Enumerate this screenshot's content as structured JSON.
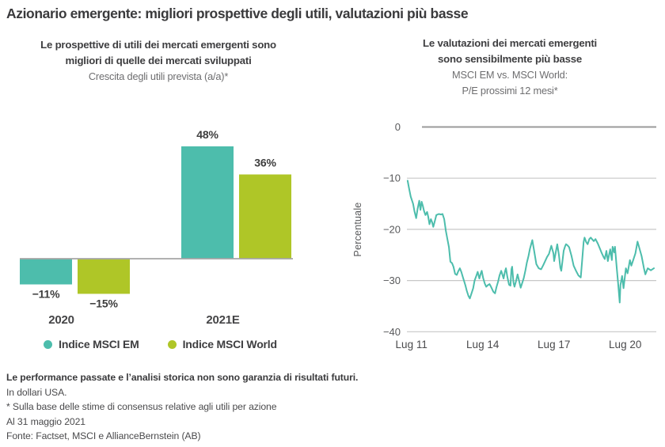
{
  "page": {
    "title": "Azionario emergente: migliori prospettive degli utili, valutazioni più basse"
  },
  "colors": {
    "em": "#4DBDAC",
    "world": "#AFC627",
    "title_dark": "#3A3A3C",
    "subtitle_gray": "#6E6E70",
    "axis_gray": "#58595B",
    "grid_light": "#C7C7C7",
    "grid_zero": "#9A9A9A",
    "baseline_gray": "#A6A6A6"
  },
  "chart_data": [
    {
      "type": "bar",
      "title_line1": "Le prospettive di utili dei mercati emergenti sono",
      "title_line2": "migliori di quelle dei mercati sviluppati",
      "subtitle": "Crescita degli utili prevista (a/a)*",
      "categories": [
        "2020",
        "2021E"
      ],
      "series": [
        {
          "name": "Indice MSCI EM",
          "color_key": "em",
          "values": [
            -11,
            48
          ],
          "labels": [
            "−11%",
            "48%"
          ]
        },
        {
          "name": "Indice MSCI World",
          "color_key": "world",
          "values": [
            -15,
            36
          ],
          "labels": [
            "−15%",
            "36%"
          ]
        }
      ],
      "ylim": [
        -20,
        55
      ],
      "grid": false,
      "legend_position": "bottom"
    },
    {
      "type": "line",
      "title_line1": "Le valutazioni dei mercati emergenti",
      "title_line2": "sono sensibilmente più basse",
      "subtitle_line1": "MSCI EM vs. MSCI World:",
      "subtitle_line2": "P/E prossimi 12 mesi*",
      "ylabel": "Percentuale",
      "ylim": [
        -40,
        0
      ],
      "xlim": [
        2011.35,
        2021.85
      ],
      "grid": true,
      "yticks": [
        {
          "value": 0,
          "label": "0"
        },
        {
          "value": -10,
          "label": "−10"
        },
        {
          "value": -20,
          "label": "−20"
        },
        {
          "value": -30,
          "label": "−30"
        },
        {
          "value": -40,
          "label": "−40"
        }
      ],
      "xticks": [
        {
          "value": 2011.54,
          "label": "Lug 11"
        },
        {
          "value": 2014.54,
          "label": "Lug 14"
        },
        {
          "value": 2017.54,
          "label": "Lug 17"
        },
        {
          "value": 2020.54,
          "label": "Lug 20"
        }
      ],
      "series": [
        {
          "name": "MSCI EM vs. MSCI World P/E prossimi 12 mesi",
          "color_key": "em",
          "points": [
            [
              2011.38,
              -10.5
            ],
            [
              2011.44,
              -12.0
            ],
            [
              2011.51,
              -13.6
            ],
            [
              2011.61,
              -15.0
            ],
            [
              2011.67,
              -16.5
            ],
            [
              2011.74,
              -17.8
            ],
            [
              2011.8,
              -16.0
            ],
            [
              2011.87,
              -14.4
            ],
            [
              2011.92,
              -16.2
            ],
            [
              2011.97,
              -14.6
            ],
            [
              2012.02,
              -15.4
            ],
            [
              2012.07,
              -16.4
            ],
            [
              2012.13,
              -17.2
            ],
            [
              2012.2,
              -16.6
            ],
            [
              2012.25,
              -17.6
            ],
            [
              2012.3,
              -19.0
            ],
            [
              2012.36,
              -18.0
            ],
            [
              2012.41,
              -18.6
            ],
            [
              2012.46,
              -19.5
            ],
            [
              2012.53,
              -18.3
            ],
            [
              2012.59,
              -17.2
            ],
            [
              2012.69,
              -17.0
            ],
            [
              2012.79,
              -17.1
            ],
            [
              2012.85,
              -17.0
            ],
            [
              2012.92,
              -18.0
            ],
            [
              2012.99,
              -20.3
            ],
            [
              2013.05,
              -21.8
            ],
            [
              2013.12,
              -23.5
            ],
            [
              2013.18,
              -26.3
            ],
            [
              2013.25,
              -26.6
            ],
            [
              2013.31,
              -27.3
            ],
            [
              2013.38,
              -28.7
            ],
            [
              2013.45,
              -28.9
            ],
            [
              2013.51,
              -28.2
            ],
            [
              2013.58,
              -27.6
            ],
            [
              2013.64,
              -28.3
            ],
            [
              2013.71,
              -29.4
            ],
            [
              2013.77,
              -30.3
            ],
            [
              2013.81,
              -30.9
            ],
            [
              2013.87,
              -32.0
            ],
            [
              2013.94,
              -33.0
            ],
            [
              2014.0,
              -33.5
            ],
            [
              2014.07,
              -32.5
            ],
            [
              2014.14,
              -31.5
            ],
            [
              2014.2,
              -30.0
            ],
            [
              2014.27,
              -29.1
            ],
            [
              2014.33,
              -28.3
            ],
            [
              2014.4,
              -29.6
            ],
            [
              2014.46,
              -28.6
            ],
            [
              2014.5,
              -28.1
            ],
            [
              2014.56,
              -29.5
            ],
            [
              2014.63,
              -30.6
            ],
            [
              2014.69,
              -31.2
            ],
            [
              2014.76,
              -30.9
            ],
            [
              2014.83,
              -30.7
            ],
            [
              2014.89,
              -31.2
            ],
            [
              2014.99,
              -32.2
            ],
            [
              2015.06,
              -32.5
            ],
            [
              2015.12,
              -31.3
            ],
            [
              2015.19,
              -30.2
            ],
            [
              2015.25,
              -29.0
            ],
            [
              2015.32,
              -28.1
            ],
            [
              2015.38,
              -29.0
            ],
            [
              2015.42,
              -29.6
            ],
            [
              2015.48,
              -28.2
            ],
            [
              2015.52,
              -27.6
            ],
            [
              2015.58,
              -29.3
            ],
            [
              2015.65,
              -30.8
            ],
            [
              2015.71,
              -31.0
            ],
            [
              2015.75,
              -27.8
            ],
            [
              2015.78,
              -27.3
            ],
            [
              2015.84,
              -30.5
            ],
            [
              2015.88,
              -31.2
            ],
            [
              2015.94,
              -30.2
            ],
            [
              2016.01,
              -28.8
            ],
            [
              2016.07,
              -30.0
            ],
            [
              2016.14,
              -31.4
            ],
            [
              2016.21,
              -30.4
            ],
            [
              2016.27,
              -29.5
            ],
            [
              2016.34,
              -28.0
            ],
            [
              2016.4,
              -26.5
            ],
            [
              2016.47,
              -25.2
            ],
            [
              2016.53,
              -23.8
            ],
            [
              2016.6,
              -22.6
            ],
            [
              2016.63,
              -22.1
            ],
            [
              2016.7,
              -24.0
            ],
            [
              2016.8,
              -26.8
            ],
            [
              2016.9,
              -27.6
            ],
            [
              2017.0,
              -27.8
            ],
            [
              2017.09,
              -27.0
            ],
            [
              2017.16,
              -26.3
            ],
            [
              2017.25,
              -25.4
            ],
            [
              2017.33,
              -24.8
            ],
            [
              2017.43,
              -23.2
            ],
            [
              2017.52,
              -24.7
            ],
            [
              2017.55,
              -26.2
            ],
            [
              2017.62,
              -24.4
            ],
            [
              2017.68,
              -22.9
            ],
            [
              2017.75,
              -25.0
            ],
            [
              2017.81,
              -27.5
            ],
            [
              2017.85,
              -28.1
            ],
            [
              2017.91,
              -25.8
            ],
            [
              2017.95,
              -24.2
            ],
            [
              2018.01,
              -23.3
            ],
            [
              2018.05,
              -22.9
            ],
            [
              2018.11,
              -23.1
            ],
            [
              2018.18,
              -23.5
            ],
            [
              2018.28,
              -25.2
            ],
            [
              2018.37,
              -27.1
            ],
            [
              2018.47,
              -28.1
            ],
            [
              2018.57,
              -29.0
            ],
            [
              2018.67,
              -29.4
            ],
            [
              2018.73,
              -26.0
            ],
            [
              2018.79,
              -22.5
            ],
            [
              2018.83,
              -21.6
            ],
            [
              2018.9,
              -22.5
            ],
            [
              2018.96,
              -22.9
            ],
            [
              2019.03,
              -21.9
            ],
            [
              2019.09,
              -21.6
            ],
            [
              2019.16,
              -22.0
            ],
            [
              2019.22,
              -22.3
            ],
            [
              2019.29,
              -21.9
            ],
            [
              2019.39,
              -22.8
            ],
            [
              2019.48,
              -23.8
            ],
            [
              2019.55,
              -24.6
            ],
            [
              2019.62,
              -25.3
            ],
            [
              2019.68,
              -25.8
            ],
            [
              2019.75,
              -24.2
            ],
            [
              2019.81,
              -26.2
            ],
            [
              2019.91,
              -23.9
            ],
            [
              2019.98,
              -26.0
            ],
            [
              2020.01,
              -23.4
            ],
            [
              2020.08,
              -24.5
            ],
            [
              2020.11,
              -23.4
            ],
            [
              2020.18,
              -27.3
            ],
            [
              2020.24,
              -30.4
            ],
            [
              2020.31,
              -34.3
            ],
            [
              2020.34,
              -30.9
            ],
            [
              2020.41,
              -29.1
            ],
            [
              2020.47,
              -31.5
            ],
            [
              2020.57,
              -27.6
            ],
            [
              2020.64,
              -28.6
            ],
            [
              2020.74,
              -26.0
            ],
            [
              2020.8,
              -27.1
            ],
            [
              2020.97,
              -24.7
            ],
            [
              2021.06,
              -22.4
            ],
            [
              2021.23,
              -25.2
            ],
            [
              2021.33,
              -27.6
            ],
            [
              2021.39,
              -28.8
            ],
            [
              2021.49,
              -27.6
            ],
            [
              2021.62,
              -28.0
            ],
            [
              2021.75,
              -27.6
            ]
          ]
        }
      ]
    }
  ],
  "footer": {
    "disclaimer": "Le performance passate e l’analisi storica non sono garanzia di risultati futuri.",
    "currency_note": "In dollari USA.",
    "estimate_note": "* Sulla base delle stime di consensus relative agli utili per azione",
    "date_note": "Al 31 maggio 2021",
    "source_note": "Fonte: Factset, MSCI e AllianceBernstein (AB)"
  }
}
